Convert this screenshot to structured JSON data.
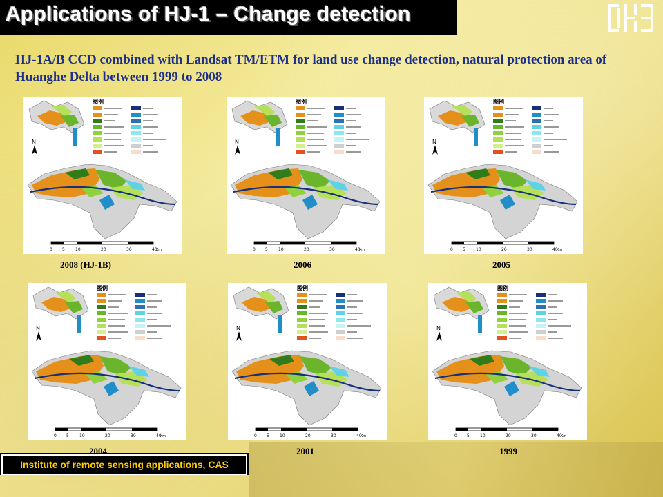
{
  "header": {
    "title": "Applications of HJ-1 – Change detection"
  },
  "subtitle": "HJ-1A/B CCD combined with Landsat TM/ETM for land use change detection, natural protection area of Huanghe Delta between 1999 to 2008",
  "maps": [
    {
      "caption": "2008 (HJ-1B)"
    },
    {
      "caption": "2006"
    },
    {
      "caption": "2005"
    },
    {
      "caption": "2004"
    },
    {
      "caption": "2001"
    },
    {
      "caption": "1999"
    }
  ],
  "map_common": {
    "legend_title": "图例",
    "scale_labels": [
      "0",
      "5",
      "10",
      "20",
      "30",
      "40"
    ],
    "scale_unit": "Km",
    "north_label": "N"
  },
  "footer": {
    "text": "Institute of remote sensing applications, CAS"
  },
  "colors": {
    "farmland": "#e5901a",
    "forest": "#2e7d1a",
    "shrub": "#6ab52c",
    "reed": "#b7e05a",
    "water": "#1f8ec9",
    "tidal": "#cfcfcf",
    "river": "#16307a",
    "pond": "#5fd2e6"
  }
}
